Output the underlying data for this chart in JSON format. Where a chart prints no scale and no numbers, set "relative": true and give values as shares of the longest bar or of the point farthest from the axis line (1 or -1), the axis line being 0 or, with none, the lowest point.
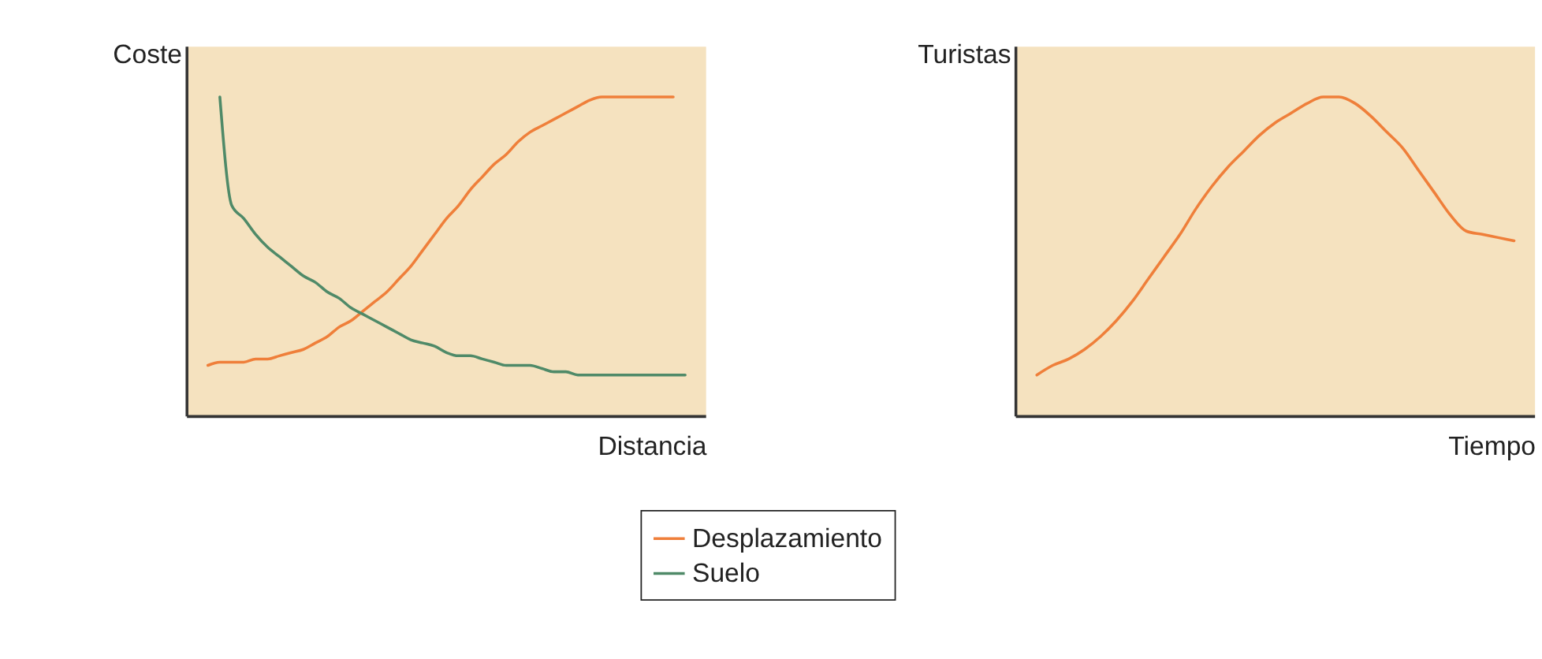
{
  "chart_data": [
    {
      "type": "line",
      "relative": true,
      "ylabel": "Coste",
      "xlabel": "Distancia",
      "legend": "bottom",
      "categories": [
        null,
        null,
        null,
        null,
        null,
        null,
        null,
        null,
        null,
        null,
        null,
        null,
        null,
        null,
        null,
        null,
        null,
        null,
        null,
        null,
        null,
        null,
        null,
        null,
        null,
        null,
        null,
        null,
        null,
        null,
        null,
        null,
        null,
        null,
        null,
        null,
        null,
        null,
        null,
        null,
        null
      ],
      "series": [
        {
          "name": "Desplazamiento",
          "color": "#ef7f3a",
          "values": [
            0.16,
            0.17,
            0.17,
            0.17,
            0.18,
            0.18,
            0.19,
            0.2,
            0.21,
            0.23,
            0.25,
            0.28,
            0.3,
            0.33,
            0.36,
            0.39,
            0.43,
            0.47,
            0.52,
            0.57,
            0.62,
            0.66,
            0.71,
            0.75,
            0.79,
            0.82,
            0.86,
            0.89,
            0.91,
            0.93,
            0.95,
            0.97,
            0.99,
            1,
            1,
            1,
            1,
            1,
            1,
            1,
            null
          ]
        },
        {
          "name": "Suelo",
          "color": "#4f8a68",
          "values": [
            null,
            1,
            0.66,
            0.62,
            0.57,
            0.53,
            0.5,
            0.47,
            0.44,
            0.42,
            0.39,
            0.37,
            0.34,
            0.32,
            0.3,
            0.28,
            0.26,
            0.24,
            0.23,
            0.22,
            0.2,
            0.19,
            0.19,
            0.18,
            0.17,
            0.16,
            0.16,
            0.16,
            0.15,
            0.14,
            0.14,
            0.13,
            0.13,
            0.13,
            0.13,
            0.13,
            0.13,
            0.13,
            0.13,
            0.13,
            0.13
          ]
        }
      ]
    },
    {
      "type": "line",
      "relative": true,
      "ylabel": "Turistas",
      "xlabel": "Tiempo",
      "categories": [
        null,
        null,
        null,
        null,
        null,
        null,
        null,
        null,
        null,
        null,
        null,
        null,
        null,
        null,
        null,
        null,
        null,
        null,
        null,
        null,
        null,
        null,
        null,
        null,
        null,
        null,
        null,
        null,
        null,
        null,
        null
      ],
      "series": [
        {
          "color": "#ef7f3a",
          "values": [
            0.13,
            0.16,
            0.18,
            0.21,
            0.25,
            0.3,
            0.36,
            0.43,
            0.5,
            0.57,
            0.65,
            0.72,
            0.78,
            0.83,
            0.88,
            0.92,
            0.95,
            0.98,
            1,
            1,
            0.98,
            0.94,
            0.89,
            0.84,
            0.77,
            0.7,
            0.63,
            0.58,
            0.57,
            0.56,
            0.55
          ]
        }
      ]
    }
  ]
}
